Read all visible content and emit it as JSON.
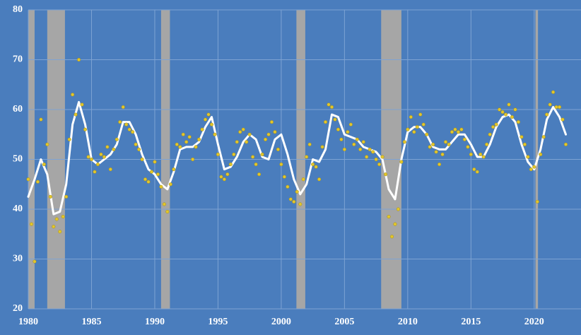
{
  "chart_data": {
    "type": "scatter",
    "background": "#4a7dbd",
    "grid": true,
    "grid_color": "#7ea3d3",
    "xlim": [
      1980,
      2023.7
    ],
    "ylim": [
      20,
      80
    ],
    "xticks": [
      1980,
      1985,
      1990,
      1995,
      2000,
      2005,
      2010,
      2015,
      2020
    ],
    "yticks": [
      20,
      30,
      40,
      50,
      60,
      70,
      80
    ],
    "shaded_color": "#a6a6a6",
    "shaded_ranges": [
      [
        1980.0,
        1980.5
      ],
      [
        1981.5,
        1982.9
      ],
      [
        1990.5,
        1991.2
      ],
      [
        2001.2,
        2001.9
      ],
      [
        2007.9,
        2009.5
      ],
      [
        2020.1,
        2020.3
      ]
    ],
    "series": [
      {
        "type": "scatter",
        "color": "#e2c62c",
        "x": [
          1980,
          1980.25,
          1980.5,
          1980.75,
          1981,
          1981.25,
          1981.5,
          1981.75,
          1982,
          1982.25,
          1982.5,
          1982.75,
          1983,
          1983.25,
          1983.5,
          1983.75,
          1984,
          1984.25,
          1984.5,
          1984.75,
          1985,
          1985.25,
          1985.5,
          1985.75,
          1986,
          1986.25,
          1986.5,
          1986.75,
          1987,
          1987.25,
          1987.5,
          1987.75,
          1988,
          1988.25,
          1988.5,
          1988.75,
          1989,
          1989.25,
          1989.5,
          1989.75,
          1990,
          1990.25,
          1990.5,
          1990.75,
          1991,
          1991.25,
          1991.5,
          1991.75,
          1992,
          1992.25,
          1992.5,
          1992.75,
          1993,
          1993.25,
          1993.5,
          1993.75,
          1994,
          1994.25,
          1994.5,
          1994.75,
          1995,
          1995.25,
          1995.5,
          1995.75,
          1996,
          1996.25,
          1996.5,
          1996.75,
          1997,
          1997.25,
          1997.5,
          1997.75,
          1998,
          1998.25,
          1998.5,
          1998.75,
          1999,
          1999.25,
          1999.5,
          1999.75,
          2000,
          2000.25,
          2000.5,
          2000.75,
          2001,
          2001.25,
          2001.5,
          2001.75,
          2002,
          2002.25,
          2002.5,
          2002.75,
          2003,
          2003.25,
          2003.5,
          2003.75,
          2004,
          2004.25,
          2004.5,
          2004.75,
          2005,
          2005.25,
          2005.5,
          2005.75,
          2006,
          2006.25,
          2006.5,
          2006.75,
          2007,
          2007.25,
          2007.5,
          2007.75,
          2008,
          2008.25,
          2008.5,
          2008.75,
          2009,
          2009.25,
          2009.5,
          2009.75,
          2010,
          2010.25,
          2010.5,
          2010.75,
          2011,
          2011.25,
          2011.5,
          2011.75,
          2012,
          2012.25,
          2012.5,
          2012.75,
          2013,
          2013.25,
          2013.5,
          2013.75,
          2014,
          2014.25,
          2014.5,
          2014.75,
          2015,
          2015.25,
          2015.5,
          2015.75,
          2016,
          2016.25,
          2016.5,
          2016.75,
          2017,
          2017.25,
          2017.5,
          2017.75,
          2018,
          2018.25,
          2018.5,
          2018.75,
          2019,
          2019.25,
          2019.5,
          2019.75,
          2020,
          2020.25,
          2020.5,
          2020.75,
          2021,
          2021.25,
          2021.5,
          2021.75,
          2022,
          2022.25,
          2022.5
        ],
        "values": [
          46,
          37,
          29.5,
          45.5,
          58,
          49,
          53,
          42.5,
          36.5,
          38,
          35.5,
          38.5,
          42.5,
          54,
          63,
          59,
          70,
          61,
          56,
          50.5,
          50,
          47.5,
          49,
          51,
          50.5,
          52.5,
          48,
          52,
          54,
          57.5,
          60.5,
          57,
          56,
          55.5,
          53,
          52,
          50,
          46,
          45.5,
          47.5,
          49.5,
          47,
          44.5,
          41,
          39.5,
          45,
          48,
          53,
          52.5,
          55,
          53.5,
          54.5,
          50,
          52.5,
          54,
          56,
          58,
          59,
          57,
          55,
          51,
          46.5,
          46,
          47,
          49,
          51,
          53.5,
          55.5,
          56,
          53.5,
          55,
          50.5,
          49,
          47,
          51,
          54,
          55,
          57.5,
          55.5,
          52,
          49,
          46.5,
          44.5,
          42,
          41.5,
          43.5,
          41,
          46,
          50.5,
          53,
          49,
          48.5,
          46,
          52.5,
          57.5,
          61,
          60.5,
          58,
          56,
          54,
          52,
          55.5,
          57,
          53,
          54,
          52,
          53.5,
          50.5,
          52,
          51.5,
          50,
          49,
          50.5,
          47,
          38.5,
          34.5,
          37,
          40,
          49.5,
          53.5,
          56,
          58.5,
          55.5,
          56.5,
          59,
          57,
          55,
          52.5,
          53,
          51.5,
          49,
          51,
          53.5,
          53,
          55.5,
          56,
          55.5,
          56,
          54,
          52.5,
          51,
          48,
          47.5,
          51,
          50.5,
          53,
          55,
          56.5,
          57,
          60,
          59.5,
          59,
          61,
          58.5,
          60,
          57.5,
          54.5,
          53,
          50.5,
          48,
          48.5,
          41.5,
          51,
          54.5,
          59,
          61,
          63.5,
          60.5,
          60.5,
          58,
          53
        ]
      },
      {
        "type": "line",
        "color": "#ffffff",
        "x": [
          1980,
          1980.5,
          1981,
          1981.5,
          1982,
          1982.5,
          1983,
          1983.5,
          1984,
          1984.5,
          1985,
          1985.5,
          1986,
          1986.5,
          1987,
          1987.5,
          1988,
          1988.5,
          1989,
          1989.5,
          1990,
          1990.5,
          1991,
          1991.5,
          1992,
          1992.5,
          1993,
          1993.5,
          1994,
          1994.5,
          1995,
          1995.5,
          1996,
          1996.5,
          1997,
          1997.5,
          1998,
          1998.5,
          1999,
          1999.5,
          2000,
          2000.5,
          2001,
          2001.5,
          2002,
          2002.5,
          2003,
          2003.5,
          2004,
          2004.5,
          2005,
          2005.5,
          2006,
          2006.5,
          2007,
          2007.5,
          2008,
          2008.5,
          2009,
          2009.5,
          2010,
          2010.5,
          2011,
          2011.5,
          2012,
          2012.5,
          2013,
          2013.5,
          2014,
          2014.5,
          2015,
          2015.5,
          2016,
          2016.5,
          2017,
          2017.5,
          2018,
          2018.5,
          2019,
          2019.5,
          2020,
          2020.5,
          2021,
          2021.5,
          2022,
          2022.5
        ],
        "values": [
          42.5,
          46,
          50,
          47,
          39,
          39.5,
          45,
          57,
          61.5,
          57,
          50,
          49,
          50,
          51,
          53,
          57.5,
          57.5,
          55,
          51,
          48,
          47,
          45,
          44,
          47.5,
          52,
          52.5,
          52.5,
          53.5,
          56.5,
          58.5,
          53,
          48,
          48.5,
          50.5,
          53.5,
          55,
          54,
          50.5,
          50,
          54,
          55,
          51,
          46,
          43,
          45,
          50,
          49.5,
          52,
          59,
          58.5,
          55,
          54.5,
          54,
          52.5,
          52,
          51.5,
          50,
          44,
          42,
          50,
          55.5,
          56.5,
          56.5,
          55,
          52.5,
          52,
          52,
          53.5,
          55,
          55,
          53,
          50.5,
          50.5,
          53,
          56.5,
          58.5,
          59,
          57.5,
          53,
          49.5,
          48,
          52,
          58,
          60.5,
          58.5,
          55
        ]
      }
    ]
  }
}
